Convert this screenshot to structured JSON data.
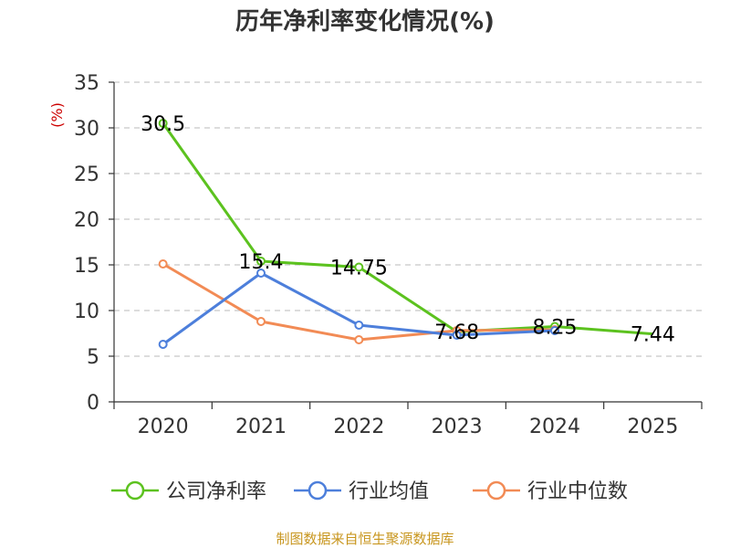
{
  "chart_data": {
    "type": "line",
    "title": "历年净利率变化情况(%)",
    "ylabel": "(%)",
    "xlabel": "",
    "ylim": [
      0,
      35
    ],
    "yticks": [
      0,
      5,
      10,
      15,
      20,
      25,
      30,
      35
    ],
    "categories": [
      "2020",
      "2021",
      "2022",
      "2023",
      "2024",
      "2025"
    ],
    "grid": true,
    "legend_position": "bottom",
    "series": [
      {
        "name": "公司净利率",
        "color": "#5cc21f",
        "values": [
          30.5,
          15.4,
          14.75,
          7.68,
          8.25,
          7.44
        ],
        "labels": [
          "30.5",
          "15.4",
          "14.75",
          "7.68",
          "8.25",
          "7.44"
        ]
      },
      {
        "name": "行业均值",
        "color": "#4d7fdb",
        "values": [
          6.3,
          14.1,
          8.4,
          7.3,
          7.8,
          null
        ]
      },
      {
        "name": "行业中位数",
        "color": "#f28b55",
        "values": [
          15.1,
          8.8,
          6.8,
          7.8,
          7.9,
          null
        ]
      }
    ],
    "source": "制图数据来自恒生聚源数据库"
  }
}
